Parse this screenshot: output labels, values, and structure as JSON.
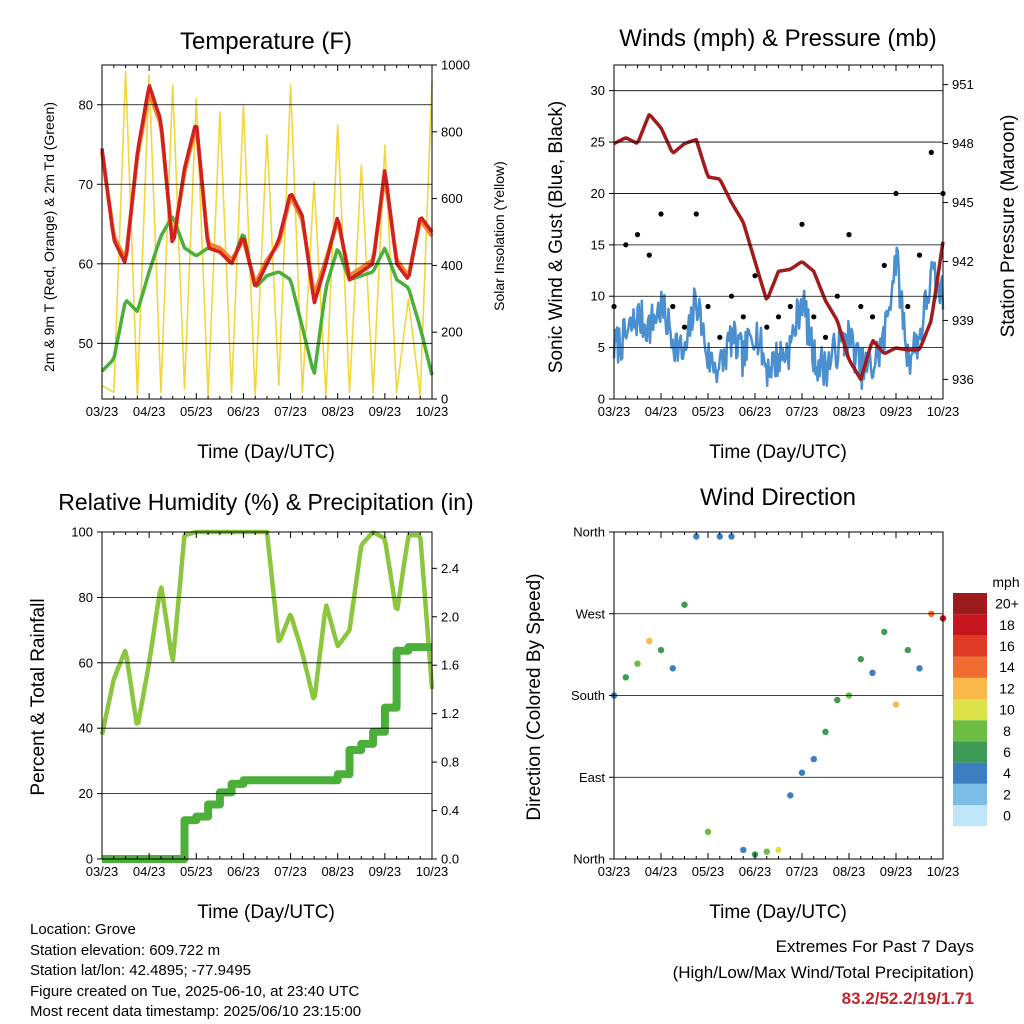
{
  "ticks_x": [
    "03/23",
    "04/23",
    "05/23",
    "06/23",
    "07/23",
    "08/23",
    "09/23",
    "10/23"
  ],
  "panels": {
    "temperature": {
      "title": "Temperature (F)",
      "xlabel": "Time (Day/UTC)",
      "ylabel_left": "2m & 9m T (Red, Orange) & 2m Td (Green)",
      "ylabel_right": "Solar Insolation (Yellow)",
      "left_ticks": [
        "50",
        "60",
        "70",
        "80"
      ],
      "right_ticks": [
        "0",
        "200",
        "400",
        "600",
        "800",
        "1000"
      ]
    },
    "winds": {
      "title": "Winds (mph) & Pressure (mb)",
      "xlabel": "Time (Day/UTC)",
      "ylabel_left": "Sonic Wind & Gust (Blue, Black)",
      "ylabel_right": "Station Pressure (Maroon)",
      "left_ticks": [
        "0",
        "5",
        "10",
        "15",
        "20",
        "25",
        "30"
      ],
      "right_ticks": [
        "936",
        "939",
        "942",
        "945",
        "948",
        "951"
      ]
    },
    "humidity": {
      "title": "Relative Humidity (%) & Precipitation (in)",
      "xlabel": "Time (Day/UTC)",
      "ylabel_left": "Percent & Total Rainfall",
      "left_ticks": [
        "0",
        "20",
        "40",
        "60",
        "80",
        "100"
      ],
      "right_ticks": [
        "0.0",
        "0.4",
        "0.8",
        "1.2",
        "1.6",
        "2.0",
        "2.4"
      ]
    },
    "direction": {
      "title": "Wind Direction",
      "xlabel": "Time (Day/UTC)",
      "ylabel_left": "Direction (Colored By Speed)",
      "dir_ticks": [
        "North",
        "East",
        "South",
        "West",
        "North"
      ],
      "legend_title": "mph",
      "legend_labels": [
        "0",
        "2",
        "4",
        "6",
        "8",
        "10",
        "12",
        "14",
        "16",
        "18",
        "20+"
      ],
      "legend_colors": [
        "#bfe6f8",
        "#7cbde6",
        "#3b7fc1",
        "#3e9a57",
        "#6cbd45",
        "#dde24a",
        "#f8b84a",
        "#f06d2f",
        "#de3a25",
        "#c4161c",
        "#9b1b1e"
      ]
    }
  },
  "colors": {
    "temp_2m": "#d22020",
    "temp_9m": "#f0882a",
    "dewpoint": "#4caf3a",
    "solar": "#f3d63c",
    "wind": "#4a8fd0",
    "gust": "#000000",
    "pressure": "#a01c1c",
    "rh": "#8cc63f",
    "precip": "#4caf3a",
    "extremes": "#c0282d"
  },
  "info": {
    "location": "Location: Grove",
    "elevation": "Station elevation: 609.722 m",
    "latlon": "Station lat/lon: 42.4895; -77.9495",
    "created": "Figure created on Tue, 2025-06-10, at 23:40 UTC",
    "recent": "Most recent data timestamp: 2025/06/10 23:15:00"
  },
  "extremes": {
    "heading": "Extremes For Past 7 Days",
    "subheading": "(High/Low/Max Wind/Total Precipitation)",
    "values": "83.2/52.2/19/1.71"
  },
  "chart_data": [
    {
      "type": "line",
      "title": "Temperature (F)",
      "xlabel": "Time (Day/UTC)",
      "ylabel": "2m & 9m T (Red, Orange) & 2m Td (Green)",
      "y2label": "Solar Insolation (Yellow)",
      "ylim": [
        43,
        85
      ],
      "y2lim": [
        0,
        1000
      ],
      "x": [
        0,
        0.25,
        0.5,
        0.75,
        1,
        1.25,
        1.5,
        1.75,
        2,
        2.25,
        2.5,
        2.75,
        3,
        3.25,
        3.5,
        3.75,
        4,
        4.25,
        4.5,
        4.75,
        5,
        5.25,
        5.5,
        5.75,
        6,
        6.25,
        6.5,
        6.75,
        7
      ],
      "series": [
        {
          "name": "2m T",
          "axis": "left",
          "values": [
            74.5,
            63,
            60,
            74,
            82.5,
            78,
            62,
            72,
            78,
            62,
            61.5,
            60,
            63.5,
            57,
            60,
            63,
            69,
            66,
            55,
            60,
            66,
            58,
            59,
            60,
            72,
            60,
            58,
            66,
            64
          ]
        },
        {
          "name": "9m T",
          "axis": "left",
          "values": [
            74,
            63.5,
            60.5,
            73.5,
            81.5,
            77.5,
            62.5,
            71.5,
            77.5,
            62.5,
            62,
            60.5,
            63,
            57.5,
            60.5,
            62.5,
            68.5,
            65.5,
            56,
            60.5,
            65.5,
            58.5,
            59.5,
            60.5,
            71,
            60.5,
            58.5,
            65.5,
            63.5
          ]
        },
        {
          "name": "2m Td",
          "axis": "left",
          "values": [
            46.5,
            48,
            55.5,
            54,
            59,
            63.5,
            66,
            62,
            61,
            62,
            61.5,
            60,
            64,
            57,
            58.5,
            59,
            58,
            52,
            46,
            57,
            62,
            58,
            58.5,
            59,
            62,
            58,
            57,
            52,
            46
          ]
        },
        {
          "name": "Solar Insolation",
          "axis": "right",
          "values": [
            40,
            20,
            980,
            10,
            970,
            20,
            940,
            30,
            900,
            10,
            860,
            20,
            880,
            10,
            790,
            40,
            940,
            20,
            650,
            10,
            820,
            20,
            700,
            20,
            760,
            20,
            300,
            10,
            950
          ]
        }
      ]
    },
    {
      "type": "line",
      "title": "Winds (mph) & Pressure (mb)",
      "xlabel": "Time (Day/UTC)",
      "ylabel": "Sonic Wind & Gust (Blue, Black)",
      "y2label": "Station Pressure (Maroon)",
      "ylim": [
        0,
        32.5
      ],
      "y2lim": [
        935,
        952
      ],
      "x": [
        0,
        0.25,
        0.5,
        0.75,
        1,
        1.25,
        1.5,
        1.75,
        2,
        2.25,
        2.5,
        2.75,
        3,
        3.25,
        3.5,
        3.75,
        4,
        4.25,
        4.5,
        4.75,
        5,
        5.25,
        5.5,
        5.75,
        6,
        6.25,
        6.5,
        6.75,
        7
      ],
      "series": [
        {
          "name": "Sonic Wind",
          "axis": "left",
          "values": [
            5,
            6,
            8,
            7,
            9,
            6,
            4,
            10,
            4,
            3,
            6,
            4,
            7,
            3,
            4,
            5,
            10,
            4,
            3,
            5,
            6,
            3,
            3,
            6,
            14,
            4,
            6,
            12,
            10
          ]
        },
        {
          "name": "Gust",
          "axis": "left",
          "values": [
            9,
            15,
            16,
            14,
            18,
            9,
            7,
            18,
            9,
            6,
            10,
            8,
            12,
            7,
            8,
            9,
            17,
            8,
            6,
            10,
            16,
            9,
            8,
            13,
            20,
            9,
            14,
            24,
            20
          ]
        },
        {
          "name": "Station Pressure",
          "axis": "right",
          "values": [
            948,
            948.3,
            948,
            949.5,
            948.8,
            947.5,
            948,
            948.2,
            946.3,
            946.2,
            945,
            944,
            942,
            940,
            941.5,
            941.6,
            942,
            941.5,
            940,
            939,
            937,
            936,
            938,
            937.3,
            937.6,
            937.5,
            937.5,
            939,
            943
          ]
        }
      ]
    },
    {
      "type": "line",
      "title": "Relative Humidity (%) & Precipitation (in)",
      "xlabel": "Time (Day/UTC)",
      "ylabel": "Percent & Total Rainfall",
      "ylim": [
        0,
        100
      ],
      "y2lim": [
        0,
        2.7
      ],
      "x": [
        0,
        0.25,
        0.5,
        0.75,
        1,
        1.25,
        1.5,
        1.75,
        2,
        2.25,
        2.5,
        2.75,
        3,
        3.25,
        3.5,
        3.75,
        4,
        4.25,
        4.5,
        4.75,
        5,
        5.25,
        5.5,
        5.75,
        6,
        6.25,
        6.5,
        6.75,
        7
      ],
      "series": [
        {
          "name": "Relative Humidity",
          "axis": "left",
          "values": [
            38,
            55,
            64,
            40,
            60,
            84,
            60,
            99,
            100,
            100,
            100,
            100,
            100,
            100,
            100,
            66,
            75,
            63,
            48,
            78,
            65,
            70,
            96,
            100,
            98,
            75,
            99,
            99,
            52
          ]
        },
        {
          "name": "Total Precipitation",
          "axis": "right",
          "values": [
            0,
            0,
            0,
            0,
            0,
            0,
            0,
            0.32,
            0.35,
            0.45,
            0.55,
            0.62,
            0.65,
            0.65,
            0.65,
            0.65,
            0.65,
            0.65,
            0.65,
            0.65,
            0.7,
            0.9,
            0.95,
            1.05,
            1.25,
            1.72,
            1.75,
            1.75,
            1.75
          ]
        }
      ]
    },
    {
      "type": "scatter",
      "title": "Wind Direction",
      "xlabel": "Time (Day/UTC)",
      "ylabel": "Direction (Colored By Speed)",
      "ylim": [
        0,
        360
      ],
      "yticks": [
        "North",
        "East",
        "South",
        "West",
        "North"
      ],
      "x": [
        0,
        0.25,
        0.5,
        0.75,
        1,
        1.25,
        1.5,
        1.75,
        2,
        2.25,
        2.5,
        2.75,
        3,
        3.25,
        3.5,
        3.75,
        4,
        4.25,
        4.5,
        4.75,
        5,
        5.25,
        5.5,
        5.75,
        6,
        6.25,
        6.5,
        6.75,
        7
      ],
      "series": [
        {
          "name": "direction",
          "values": [
            180,
            200,
            215,
            240,
            230,
            210,
            280,
            355,
            30,
            355,
            355,
            10,
            5,
            8,
            10,
            70,
            95,
            110,
            140,
            175,
            180,
            220,
            205,
            250,
            170,
            230,
            210,
            270,
            265
          ]
        },
        {
          "name": "speed",
          "values": [
            4,
            6,
            8,
            12,
            5,
            4,
            6,
            4,
            8,
            3,
            4,
            4,
            6,
            8,
            10,
            4,
            4,
            4,
            6,
            6,
            8,
            6,
            4,
            6,
            12,
            6,
            4,
            14,
            18
          ]
        }
      ]
    }
  ]
}
